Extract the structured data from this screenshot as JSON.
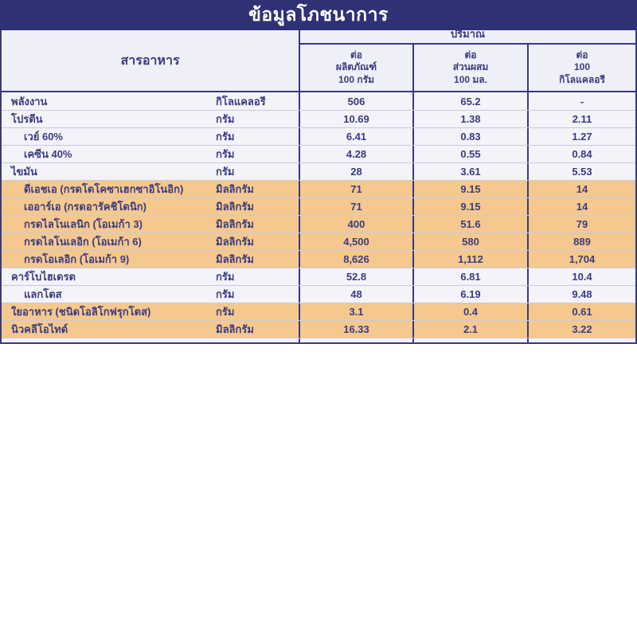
{
  "title": "ข้อมูลโภชนาการ",
  "table": {
    "nutrient_header": "สารอาหาร",
    "quantity_header": "ปริมาณ",
    "columns": [
      {
        "lines": [
          "ต่อ",
          "ผลิตภัณฑ์",
          "100 กรัม"
        ]
      },
      {
        "lines": [
          "ต่อ",
          "ส่วนผสม",
          "100 มล."
        ]
      },
      {
        "lines": [
          "ต่อ",
          "100",
          "กิโลแคลอรี"
        ]
      }
    ],
    "rows": [
      {
        "name": "พลังงาน",
        "unit": "กิโลแคลอรี",
        "values": [
          "506",
          "65.2",
          "-"
        ],
        "indent": false,
        "highlight": false
      },
      {
        "name": "โปรตีน",
        "unit": "กรัม",
        "values": [
          "10.69",
          "1.38",
          "2.11"
        ],
        "indent": false,
        "highlight": false
      },
      {
        "name": "เวย์ 60%",
        "unit": "กรัม",
        "values": [
          "6.41",
          "0.83",
          "1.27"
        ],
        "indent": true,
        "highlight": false
      },
      {
        "name": "เคซีน 40%",
        "unit": "กรัม",
        "values": [
          "4.28",
          "0.55",
          "0.84"
        ],
        "indent": true,
        "highlight": false
      },
      {
        "name": "ไขมัน",
        "unit": "กรัม",
        "values": [
          "28",
          "3.61",
          "5.53"
        ],
        "indent": false,
        "highlight": false
      },
      {
        "name": "ดีเอชเอ (กรดโดโคซาเฮกซาอิโนอิก)",
        "unit": "มิลลิกรัม",
        "values": [
          "71",
          "9.15",
          "14"
        ],
        "indent": true,
        "highlight": true
      },
      {
        "name": "เออาร์เอ (กรดอารัคชิโดนิก)",
        "unit": "มิลลิกรัม",
        "values": [
          "71",
          "9.15",
          "14"
        ],
        "indent": true,
        "highlight": true
      },
      {
        "name": "กรดไลโนเลนิก (โอเมก้า 3)",
        "unit": "มิลลิกรัม",
        "values": [
          "400",
          "51.6",
          "79"
        ],
        "indent": true,
        "highlight": true
      },
      {
        "name": "กรดไลโนเลอิก (โอเมก้า 6)",
        "unit": "มิลลิกรัม",
        "values": [
          "4,500",
          "580",
          "889"
        ],
        "indent": true,
        "highlight": true
      },
      {
        "name": "กรดโอเลอิก (โอเมก้า 9)",
        "unit": "มิลลิกรัม",
        "values": [
          "8,626",
          "1,112",
          "1,704"
        ],
        "indent": true,
        "highlight": true
      },
      {
        "name": "คาร์โบไฮเดรต",
        "unit": "กรัม",
        "values": [
          "52.8",
          "6.81",
          "10.4"
        ],
        "indent": false,
        "highlight": false
      },
      {
        "name": "แลกโตส",
        "unit": "กรัม",
        "values": [
          "48",
          "6.19",
          "9.48"
        ],
        "indent": true,
        "highlight": false
      },
      {
        "name": "ใยอาหาร (ชนิดโอลิโกฟรุกโตส)",
        "unit": "กรัม",
        "values": [
          "3.1",
          "0.4",
          "0.61"
        ],
        "indent": false,
        "highlight": true
      },
      {
        "name": "นิวคลีโอไทด์",
        "unit": "มิลลิกรัม",
        "values": [
          "16.33",
          "2.1",
          "3.22"
        ],
        "indent": false,
        "highlight": true
      }
    ]
  },
  "colors": {
    "navy_band": "#2e3173",
    "border_navy": "#3a3a7d",
    "header_bg": "#efeff7",
    "row_bg": "#f3f3f9",
    "highlight_row_bg": "#f5c88e",
    "text": "#3b3b80",
    "title_text": "#ffffff"
  }
}
